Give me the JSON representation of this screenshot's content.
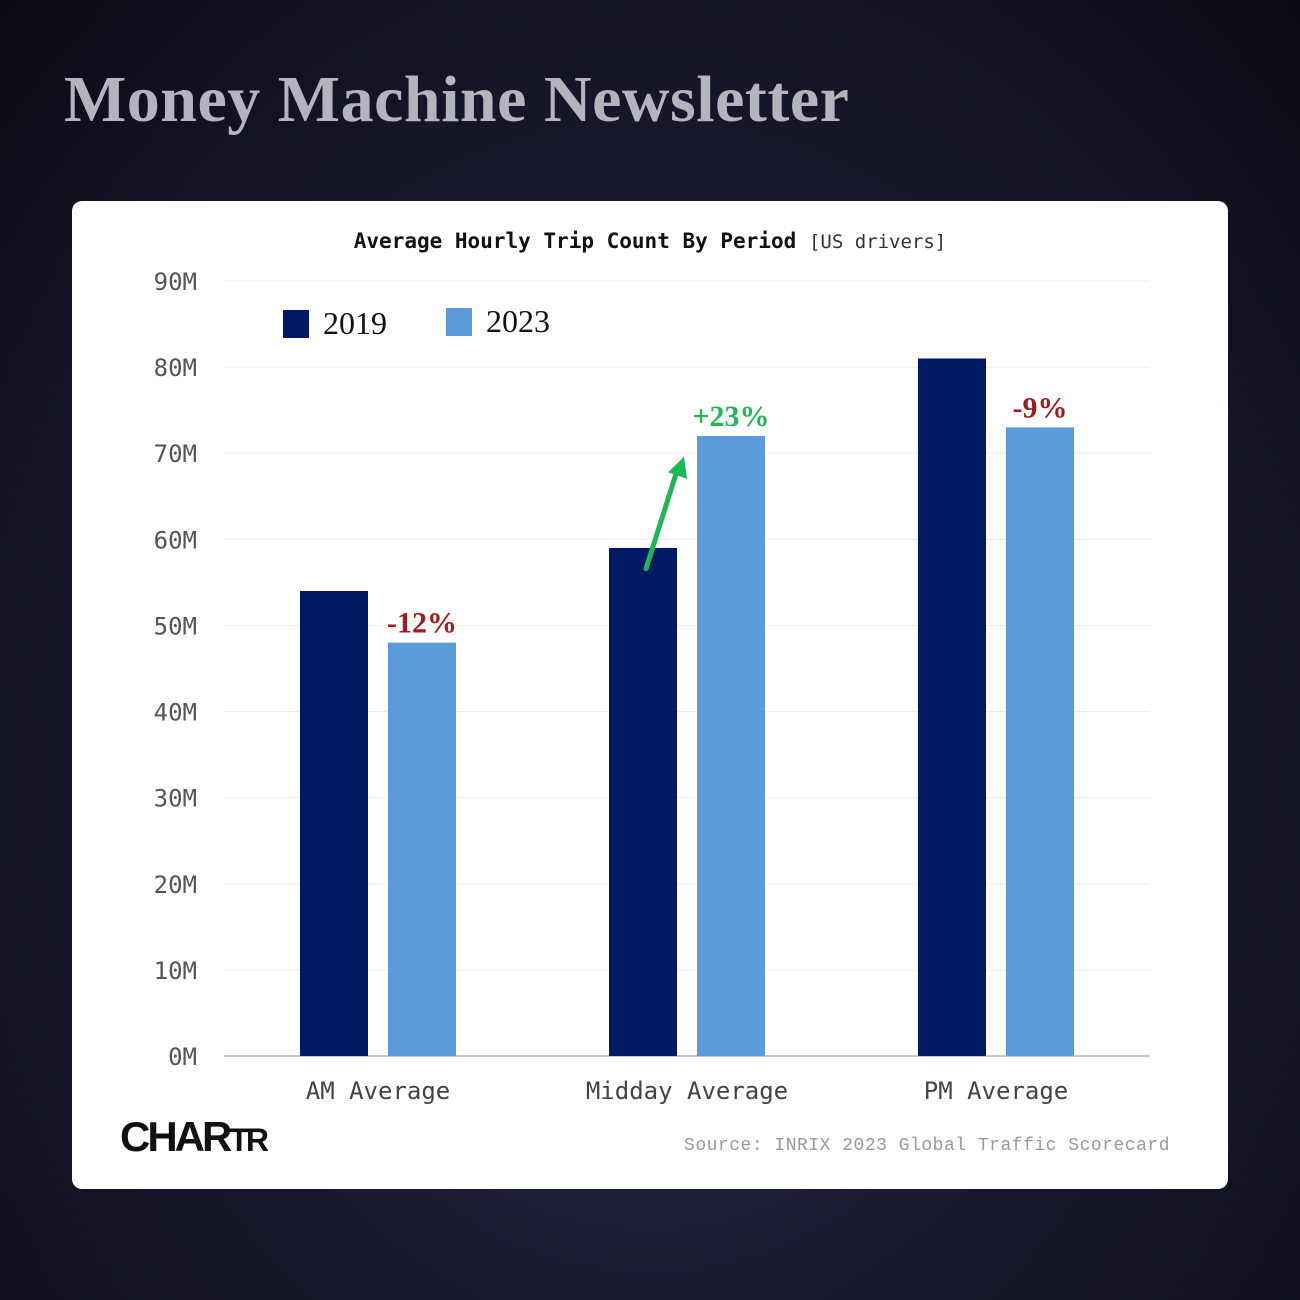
{
  "header": {
    "title": "Money Machine Newsletter"
  },
  "chart_data": {
    "type": "bar",
    "title": "Average Hourly Trip Count By Period",
    "subtitle": "[US drivers]",
    "categories": [
      "AM Average",
      "Midday Average",
      "PM Average"
    ],
    "series": [
      {
        "name": "2019",
        "color": "#021963",
        "values": [
          54,
          59,
          81
        ]
      },
      {
        "name": "2023",
        "color": "#5b9bd9",
        "values": [
          48,
          72,
          73
        ]
      }
    ],
    "unit": "M",
    "ylim": [
      0,
      90
    ],
    "yticks": [
      "0M",
      "10M",
      "20M",
      "30M",
      "40M",
      "50M",
      "60M",
      "70M",
      "80M",
      "90M"
    ],
    "grid": true,
    "legend_position": "top-left",
    "annotations": [
      {
        "category": "AM Average",
        "text": "-12%",
        "color": "#a01c1c"
      },
      {
        "category": "Midday Average",
        "text": "+23%",
        "color": "#1db954",
        "arrow": true
      },
      {
        "category": "PM Average",
        "text": "-9%",
        "color": "#a01c1c"
      }
    ]
  },
  "footer": {
    "logo_text": "CHARTR",
    "source": "Source: INRIX 2023 Global Traffic Scorecard"
  }
}
